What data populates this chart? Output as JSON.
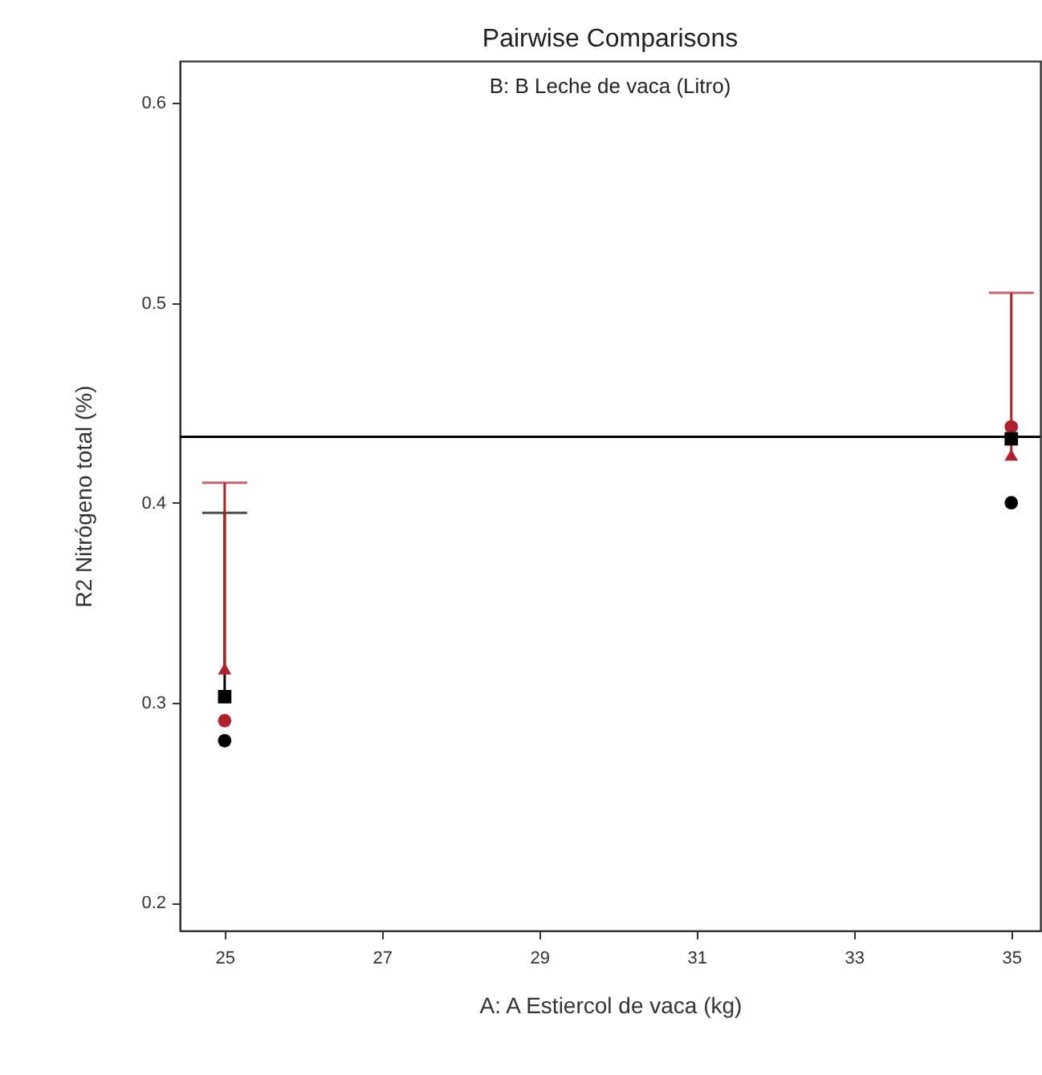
{
  "chart_data": {
    "type": "scatter",
    "title": "Pairwise Comparisons",
    "subtitle": "B: B Leche de vaca (Litro)",
    "xlabel": "A: A Estiercol de vaca (kg)",
    "ylabel": "R2 Nitrógeno total (%)",
    "x": [
      25,
      35
    ],
    "series": [
      {
        "color": "#000000",
        "marker": "circle",
        "values": [
          0.281,
          0.4
        ]
      },
      {
        "color": "#b0202c",
        "marker": "circle",
        "values": [
          0.291,
          0.438
        ]
      },
      {
        "color": "#000000",
        "marker": "square",
        "values": [
          0.303,
          0.432
        ],
        "errors": [
          [
            0.303,
            0.395
          ],
          null
        ]
      },
      {
        "color": "#b0202c",
        "marker": "triangle",
        "values": [
          0.317,
          0.424
        ],
        "errors": [
          [
            0.317,
            0.41
          ],
          [
            0.424,
            0.505
          ]
        ]
      }
    ],
    "xlim": [
      24.43,
      35.37
    ],
    "xticks": [
      25,
      27,
      29,
      31,
      33,
      35
    ],
    "ylim": [
      0.186,
      0.621
    ],
    "yticks": [
      0.2,
      0.3,
      0.4,
      0.5,
      0.6
    ],
    "ref_lines": [
      {
        "axis": "y",
        "value": 0.433,
        "color": "#000000"
      }
    ],
    "grid": false
  }
}
